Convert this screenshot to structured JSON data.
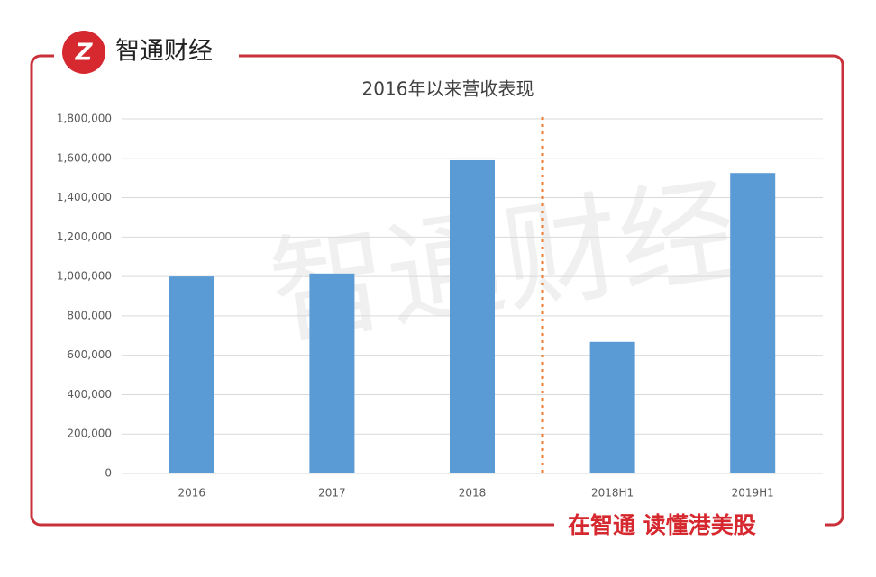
{
  "brand": "智通财经",
  "slogan": "在智通 读懂港美股",
  "watermark": "智通财经",
  "chart_data": {
    "type": "bar",
    "title": "2016年以来营收表现",
    "categories": [
      "2016",
      "2017",
      "2018",
      "2018H1",
      "2019H1"
    ],
    "values": [
      1000000,
      1015000,
      1590000,
      668000,
      1525000
    ],
    "color": "#5b9bd5",
    "ylim": [
      0,
      1800000
    ],
    "yticks": [
      0,
      {
        "value": 200000,
        "label": "200,000"
      },
      {
        "value": 400000,
        "label": "400,000"
      },
      {
        "value": 600000,
        "label": "600,000"
      },
      {
        "value": 800000,
        "label": "800,000"
      },
      {
        "value": 1000000,
        "label": "1,000,000"
      },
      {
        "value": 1200000,
        "label": "1,200,000"
      },
      {
        "value": 1400000,
        "label": "1,400,000"
      },
      {
        "value": 1600000,
        "label": "1,600,000"
      },
      {
        "value": 1800000,
        "label": "1,800,000"
      }
    ],
    "grid": true
  }
}
